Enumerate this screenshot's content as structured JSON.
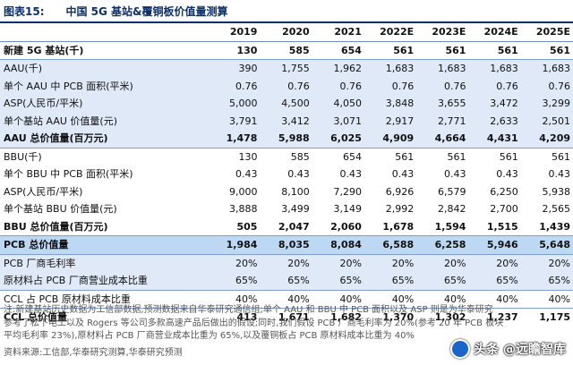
{
  "figure": {
    "number": "图表15:",
    "title": "中国 5G 基站&覆铜板价值量测算"
  },
  "table": {
    "columns": [
      "",
      "2019",
      "2020",
      "2021",
      "2022E",
      "2023E",
      "2024E",
      "2025E"
    ],
    "rows": [
      {
        "label": "新建 5G 基站(千)",
        "values": [
          "130",
          "585",
          "654",
          "561",
          "561",
          "561",
          "561"
        ]
      },
      {
        "label": "AAU(千)",
        "values": [
          "390",
          "1,755",
          "1,962",
          "1,683",
          "1,683",
          "1,683",
          "1,683"
        ]
      },
      {
        "label": "单个 AAU 中 PCB 面积(平米)",
        "values": [
          "0.76",
          "0.76",
          "0.76",
          "0.76",
          "0.76",
          "0.76",
          "0.76"
        ]
      },
      {
        "label": "ASP(人民币/平米)",
        "values": [
          "5,000",
          "4,500",
          "4,050",
          "3,848",
          "3,655",
          "3,472",
          "3,299"
        ]
      },
      {
        "label": "单个基站 AAU 价值量(元)",
        "values": [
          "3,791",
          "3,412",
          "3,071",
          "2,917",
          "2,771",
          "2,633",
          "2,501"
        ]
      },
      {
        "label": "AAU 总价值量(百万元)",
        "values": [
          "1,478",
          "5,988",
          "6,025",
          "4,909",
          "4,664",
          "4,431",
          "4,209"
        ]
      },
      {
        "label": "BBU(千)",
        "values": [
          "130",
          "585",
          "654",
          "561",
          "561",
          "561",
          "561"
        ]
      },
      {
        "label": "单个 BBU 中 PCB 面积(平米)",
        "values": [
          "0.43",
          "0.43",
          "0.43",
          "0.43",
          "0.43",
          "0.43",
          "0.43"
        ]
      },
      {
        "label": "ASP(人民币/平米)",
        "values": [
          "9,000",
          "8,100",
          "7,290",
          "6,926",
          "6,579",
          "6,250",
          "5,938"
        ]
      },
      {
        "label": "单个基站 BBU 价值量(元)",
        "values": [
          "3,888",
          "3,499",
          "3,149",
          "2,992",
          "2,842",
          "2,700",
          "2,565"
        ]
      },
      {
        "label": "BBU 总价值量(百万元)",
        "values": [
          "505",
          "2,047",
          "2,060",
          "1,678",
          "1,594",
          "1,515",
          "1,439"
        ]
      },
      {
        "label": "PCB 总价值量",
        "values": [
          "1,984",
          "8,035",
          "8,084",
          "6,588",
          "6,258",
          "5,946",
          "5,648"
        ]
      },
      {
        "label": "PCB 厂商毛利率",
        "values": [
          "20%",
          "20%",
          "20%",
          "20%",
          "20%",
          "20%",
          "20%"
        ]
      },
      {
        "label": "原材料占 PCB 厂商营业成本比重",
        "values": [
          "65%",
          "65%",
          "65%",
          "65%",
          "65%",
          "65%",
          "65%"
        ]
      },
      {
        "label": "CCL 占 PCB 原材料成本比重",
        "values": [
          "40%",
          "40%",
          "40%",
          "40%",
          "40%",
          "40%",
          "40%"
        ]
      },
      {
        "label": "CCL 总价值量",
        "values": [
          "413",
          "1,671",
          "1,682",
          "1,370",
          "1,302",
          "1,237",
          "1,175"
        ]
      }
    ]
  },
  "notes": {
    "line1": "注:新建基站历史数据为工信部数据,预测数据来自华泰研究通信组;单个 AAU 和 BBU 中 PCB 面积以及 ASP 则是为华泰研究",
    "line2": "参考了松下电工以及 Rogers 等公司多款高速产品后做出的假设;同时,我们假设 PCB 厂商毛利率为 20%(参考 20 年 PCB 板块",
    "line3": "平均毛利率 23%),原材料占 PCB 厂商营业成本比重为 65%,以及覆铜板占 PCB 原材料成本比重为 40%"
  },
  "source": "资料来源:工信部,华泰研究测算,华泰研究预测",
  "watermark": {
    "text": "头条 @远瞻智库"
  }
}
